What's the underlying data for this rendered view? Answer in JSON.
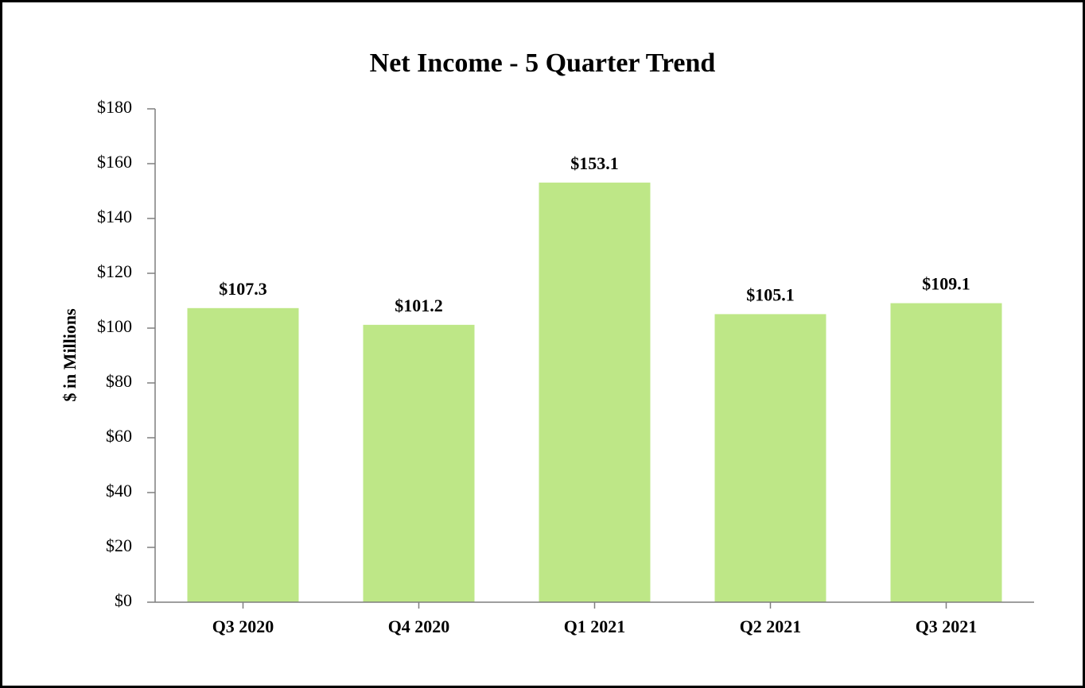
{
  "chart_data": {
    "type": "bar",
    "title": "Net Income - 5 Quarter Trend",
    "y_label": "$ in Millions",
    "categories": [
      "Q3 2020",
      "Q4 2020",
      "Q1 2021",
      "Q2 2021",
      "Q3 2021"
    ],
    "values": [
      107.3,
      101.2,
      153.1,
      105.1,
      109.1
    ],
    "value_labels": [
      "$107.3",
      "$101.2",
      "$153.1",
      "$105.1",
      "$109.1"
    ],
    "color": "#bee787",
    "ylim": [
      0,
      180
    ],
    "yticks": [
      {
        "value": 0,
        "label": "$0"
      },
      {
        "value": 20,
        "label": "$20"
      },
      {
        "value": 40,
        "label": "$40"
      },
      {
        "value": 60,
        "label": "$60"
      },
      {
        "value": 80,
        "label": "$80"
      },
      {
        "value": 100,
        "label": "$100"
      },
      {
        "value": 120,
        "label": "$120"
      },
      {
        "value": 140,
        "label": "$140"
      },
      {
        "value": 160,
        "label": "$160"
      },
      {
        "value": 180,
        "label": "$180"
      }
    ],
    "grid": false
  }
}
